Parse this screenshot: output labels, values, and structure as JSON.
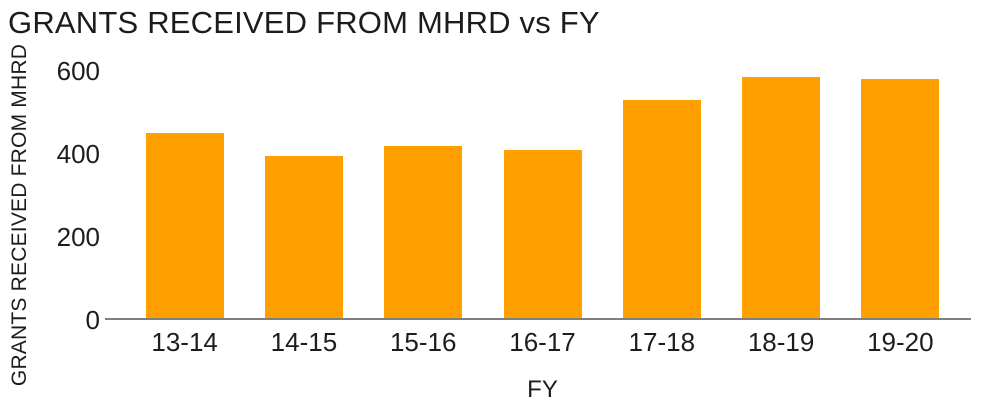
{
  "title": "GRANTS RECEIVED FROM MHRD vs FY",
  "colors": {
    "bar": "#ffa000",
    "axis_line": "#7f7f7f",
    "text": "#1d1d1d",
    "background": "#ffffff"
  },
  "chart_data": {
    "type": "bar",
    "title": "GRANTS RECEIVED FROM MHRD vs FY",
    "xlabel": "FY",
    "ylabel": "GRANTS RECEIVED FROM MHRD",
    "categories": [
      "13-14",
      "14-15",
      "15-16",
      "16-17",
      "17-18",
      "18-19",
      "19-20"
    ],
    "values": [
      450,
      395,
      420,
      410,
      530,
      585,
      580
    ],
    "ylim": [
      0,
      600
    ],
    "yticks": [
      0,
      200,
      400,
      600
    ],
    "grid": false,
    "legend": "none",
    "bar_color": "#ffa000"
  }
}
